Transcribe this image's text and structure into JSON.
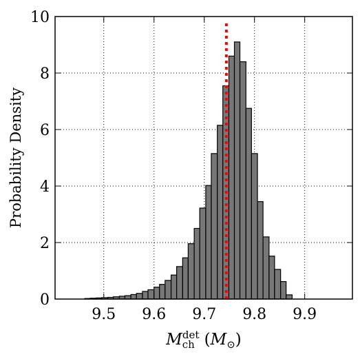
{
  "chart_data": {
    "type": "histogram",
    "y_label": "Probability Density",
    "x_label_parts": [
      {
        "text": "M",
        "role": "base",
        "italic": true
      },
      {
        "text": "ch",
        "role": "sub",
        "italic": false
      },
      {
        "text": "det",
        "role": "sup",
        "italic": false
      },
      {
        "text": " (",
        "role": "base",
        "italic": false
      },
      {
        "text": "M",
        "role": "base",
        "italic": true
      },
      {
        "text": "⊙",
        "role": "sub",
        "italic": false
      },
      {
        "text": ")",
        "role": "base",
        "italic": false
      }
    ],
    "bins": [
      9.462,
      9.473,
      9.485,
      9.496,
      9.508,
      9.519,
      9.531,
      9.542,
      9.554,
      9.565,
      9.577,
      9.588,
      9.6,
      9.611,
      9.622,
      9.634,
      9.645,
      9.657,
      9.668,
      9.68,
      9.691,
      9.703,
      9.714,
      9.726,
      9.737,
      9.749,
      9.76,
      9.771,
      9.783,
      9.794,
      9.806,
      9.817,
      9.829,
      9.84,
      9.852,
      9.863,
      9.875
    ],
    "values": [
      0.02,
      0.03,
      0.04,
      0.05,
      0.06,
      0.08,
      0.1,
      0.12,
      0.16,
      0.2,
      0.27,
      0.33,
      0.42,
      0.52,
      0.66,
      0.85,
      1.15,
      1.46,
      1.96,
      2.5,
      3.22,
      4.02,
      5.15,
      6.15,
      7.55,
      8.6,
      9.1,
      8.4,
      6.75,
      5.15,
      3.45,
      2.2,
      1.52,
      1.05,
      0.62,
      0.15
    ],
    "color": "#777777",
    "edge_color": "#000000",
    "vline": {
      "x": 9.744,
      "ylim_top": 9.8,
      "color": "#ff0000"
    },
    "xlim": [
      9.403,
      9.995
    ],
    "ylim": [
      0,
      10
    ],
    "xticks": [
      9.5,
      9.6,
      9.7,
      9.8,
      9.9
    ],
    "yticks": [
      0,
      2,
      4,
      6,
      8,
      10
    ],
    "grid": true
  }
}
